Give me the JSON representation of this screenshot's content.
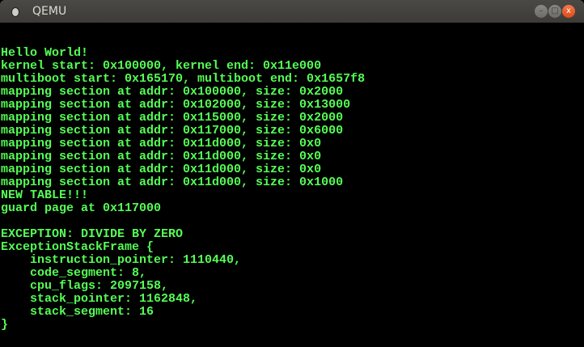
{
  "window": {
    "title": "QEMU",
    "buttons": {
      "minimize": "–",
      "maximize": "□",
      "close": "x"
    }
  },
  "console": {
    "text_color": "#55ff55",
    "lines": [
      "Hello World!",
      "kernel start: 0x100000, kernel end: 0x11e000",
      "multiboot start: 0x165170, multiboot end: 0x1657f8",
      "mapping section at addr: 0x100000, size: 0x2000",
      "mapping section at addr: 0x102000, size: 0x13000",
      "mapping section at addr: 0x115000, size: 0x2000",
      "mapping section at addr: 0x117000, size: 0x6000",
      "mapping section at addr: 0x11d000, size: 0x0",
      "mapping section at addr: 0x11d000, size: 0x0",
      "mapping section at addr: 0x11d000, size: 0x0",
      "mapping section at addr: 0x11d000, size: 0x1000",
      "NEW TABLE!!!",
      "guard page at 0x117000",
      "",
      "EXCEPTION: DIVIDE BY ZERO",
      "ExceptionStackFrame {",
      "    instruction_pointer: 1110440,",
      "    code_segment: 8,",
      "    cpu_flags: 2097158,",
      "    stack_pointer: 1162848,",
      "    stack_segment: 16",
      "}"
    ]
  }
}
